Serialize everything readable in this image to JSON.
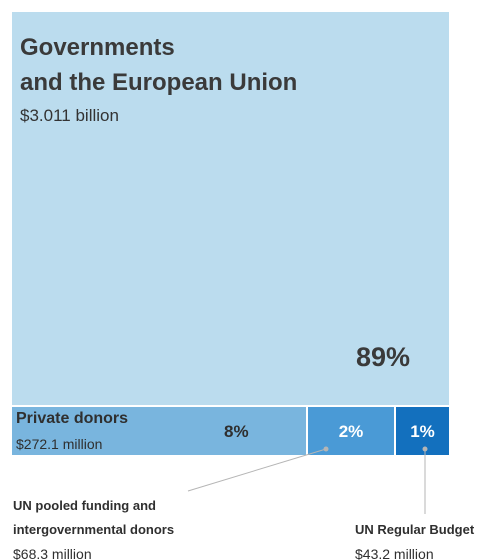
{
  "chart_data": {
    "type": "treemap",
    "segments": [
      {
        "key": "governments",
        "name": "Governments and the European Union",
        "name_lines": [
          "Governments",
          "and the European Union"
        ],
        "value": "$3.011 billion",
        "amount_millions": 3011,
        "percent": "89%"
      },
      {
        "key": "private",
        "name": "Private donors",
        "value": "$272.1 million",
        "amount_millions": 272.1,
        "percent": "8%"
      },
      {
        "key": "pooled",
        "name": "UN pooled funding and intergovernmental donors",
        "name_lines": [
          "UN pooled funding and",
          "intergovernmental donors"
        ],
        "value": "$68.3 million",
        "amount_millions": 68.3,
        "percent": "2%"
      },
      {
        "key": "budget",
        "name": "UN Regular Budget",
        "value": "$43.2 million",
        "amount_millions": 43.2,
        "percent": "1%"
      }
    ],
    "colors": {
      "governments": "#bbdcee",
      "private": "#79b5de",
      "pooled": "#4a9ad6",
      "budget": "#1370be",
      "leader_line": "#b5b5b5"
    }
  }
}
